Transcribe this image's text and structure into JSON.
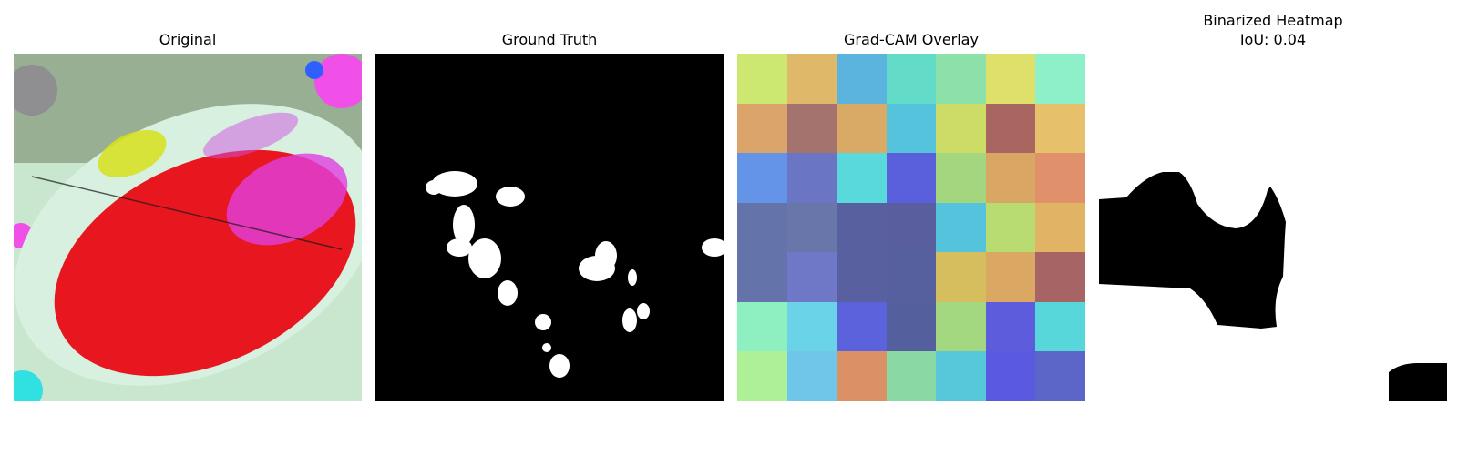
{
  "panels": [
    {
      "title": "Original"
    },
    {
      "title": "Ground Truth"
    },
    {
      "title": "Grad-CAM Overlay"
    },
    {
      "title": "Binarized Heatmap",
      "subtitle": "IoU: 0.04"
    }
  ],
  "overlay_grid": [
    [
      "#cde870",
      "#e0b86a",
      "#5ab4de",
      "#62dbc9",
      "#8ce0a8",
      "#dfe06a",
      "#8ef0c8"
    ],
    [
      "#dba46a",
      "#a4736e",
      "#d9aa66",
      "#55c3db",
      "#cddc66",
      "#a96660",
      "#e6c06a"
    ],
    [
      "#6494e8",
      "#6a76c4",
      "#5ad9dc",
      "#5a60dc",
      "#a3d67e",
      "#d9a664",
      "#e0906a"
    ],
    [
      "#6474aa",
      "#6876aa",
      "#5860a0",
      "#585e9e",
      "#56c3dc",
      "#b9dc72",
      "#e0b464"
    ],
    [
      "#6474aa",
      "#6e78c6",
      "#5860a0",
      "#56609e",
      "#d6be5e",
      "#dba864",
      "#a66464"
    ],
    [
      "#8ef0c0",
      "#6ad3e8",
      "#5c62dc",
      "#54609e",
      "#a4d880",
      "#5c5cdc",
      "#58d7db"
    ],
    [
      "#aef098",
      "#70c6e8",
      "#dc9066",
      "#8ad9a4",
      "#56c8da",
      "#5a5ae0",
      "#5c66c8"
    ]
  ]
}
